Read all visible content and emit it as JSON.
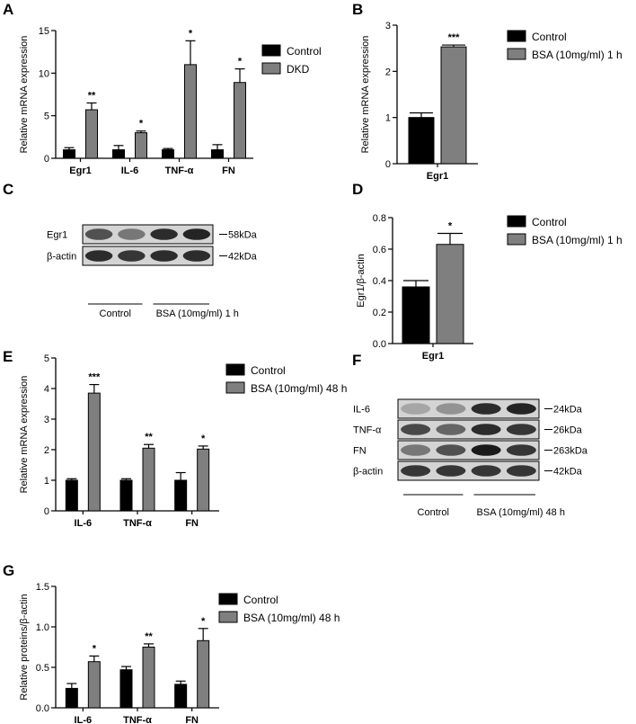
{
  "colors": {
    "control": "#000000",
    "treated": "#7f7f7f",
    "band": "#1a1a1a",
    "blot_bg": "#d4d4d4"
  },
  "chart_data": [
    {
      "panel": "A",
      "type": "bar",
      "ylabel": "Relative mRNA expression",
      "ylim": [
        0,
        15
      ],
      "yticks": [
        "0",
        "5",
        "10",
        "15"
      ],
      "categories": [
        "Egr1",
        "IL-6",
        "TNF-α",
        "FN"
      ],
      "series": [
        {
          "name": "Control",
          "values": [
            1.0,
            1.0,
            1.0,
            1.0
          ],
          "errors": [
            0.25,
            0.5,
            0.15,
            0.6
          ]
        },
        {
          "name": "DKD",
          "values": [
            5.7,
            3.0,
            11.0,
            8.9
          ],
          "errors": [
            0.8,
            0.2,
            2.8,
            1.6
          ]
        }
      ],
      "significance": [
        "**",
        "*",
        "*",
        "*"
      ]
    },
    {
      "panel": "B",
      "type": "bar",
      "ylabel": "Relative mRNA expression",
      "ylim": [
        0,
        3
      ],
      "yticks": [
        "0",
        "1",
        "2",
        "3"
      ],
      "categories": [
        "Egr1"
      ],
      "series": [
        {
          "name": "Control",
          "values": [
            1.0
          ],
          "errors": [
            0.1
          ]
        },
        {
          "name": "BSA (10mg/ml) 1 h",
          "values": [
            2.53
          ],
          "errors": [
            0.04
          ]
        }
      ],
      "significance": [
        "***"
      ]
    },
    {
      "panel": "D",
      "type": "bar",
      "ylabel": "Egr1/β-actin",
      "ylim": [
        0,
        0.8
      ],
      "yticks": [
        "0.0",
        "0.2",
        "0.4",
        "0.6",
        "0.8"
      ],
      "categories": [
        "Egr1"
      ],
      "series": [
        {
          "name": "Control",
          "values": [
            0.36
          ],
          "errors": [
            0.04
          ]
        },
        {
          "name": "BSA (10mg/ml) 1 h",
          "values": [
            0.63
          ],
          "errors": [
            0.07
          ]
        }
      ],
      "significance": [
        "*"
      ]
    },
    {
      "panel": "E",
      "type": "bar",
      "ylabel": "Relative mRNA expression",
      "ylim": [
        0,
        5
      ],
      "yticks": [
        "0",
        "1",
        "2",
        "3",
        "4",
        "5"
      ],
      "categories": [
        "IL-6",
        "TNF-α",
        "FN"
      ],
      "series": [
        {
          "name": "Control",
          "values": [
            1.0,
            1.0,
            1.0
          ],
          "errors": [
            0.05,
            0.05,
            0.25
          ]
        },
        {
          "name": "BSA (10mg/ml) 48 h",
          "values": [
            3.85,
            2.05,
            2.02
          ],
          "errors": [
            0.28,
            0.12,
            0.1
          ]
        }
      ],
      "significance": [
        "***",
        "**",
        "*"
      ]
    },
    {
      "panel": "G",
      "type": "bar",
      "ylabel": "Relative proteins/β-actin",
      "ylim": [
        0,
        1.5
      ],
      "yticks": [
        "0.0",
        "0.5",
        "1.0",
        "1.5"
      ],
      "categories": [
        "IL-6",
        "TNF-α",
        "FN"
      ],
      "series": [
        {
          "name": "Control",
          "values": [
            0.24,
            0.47,
            0.29
          ],
          "errors": [
            0.06,
            0.04,
            0.04
          ]
        },
        {
          "name": "BSA (10mg/ml) 48 h",
          "values": [
            0.57,
            0.75,
            0.83
          ],
          "errors": [
            0.07,
            0.04,
            0.15
          ]
        }
      ],
      "significance": [
        "*",
        "**",
        "*"
      ]
    }
  ],
  "blots": [
    {
      "panel": "C",
      "rows": [
        {
          "label": "Egr1",
          "size": "58kDa",
          "intensity": [
            0.7,
            0.5,
            0.9,
            0.95
          ]
        },
        {
          "label": "β-actin",
          "size": "42kDa",
          "intensity": [
            0.9,
            0.85,
            0.9,
            0.9
          ]
        }
      ],
      "groups": [
        "Control",
        "BSA (10mg/ml) 1 h"
      ]
    },
    {
      "panel": "F",
      "rows": [
        {
          "label": "IL-6",
          "size": "24kDa",
          "intensity": [
            0.25,
            0.35,
            0.9,
            0.95
          ]
        },
        {
          "label": "TNF-α",
          "size": "26kDa",
          "intensity": [
            0.75,
            0.6,
            0.9,
            0.85
          ]
        },
        {
          "label": "FN",
          "size": "263kDa",
          "intensity": [
            0.5,
            0.7,
            1.0,
            0.85
          ]
        },
        {
          "label": "β-actin",
          "size": "42kDa",
          "intensity": [
            0.85,
            0.85,
            0.85,
            0.85
          ]
        }
      ],
      "groups": [
        "Control",
        "BSA (10mg/ml) 48 h"
      ]
    }
  ]
}
